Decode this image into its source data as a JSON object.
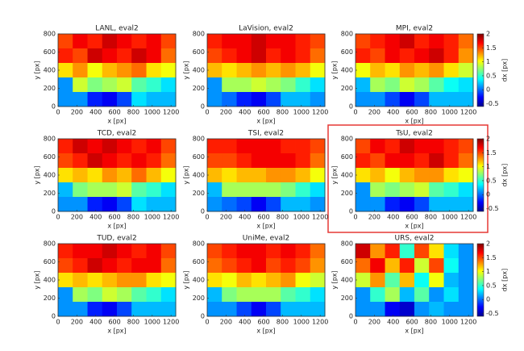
{
  "chart_data": [
    {
      "type": "heatmap",
      "title": "LANL, eval2",
      "xlabel": "x [px]",
      "ylabel": "y [px]",
      "x": [
        78,
        234,
        391,
        547,
        703,
        859,
        1016,
        1172
      ],
      "y": [
        720,
        560,
        400,
        240,
        80
      ],
      "values": [
        [
          1.5,
          1.7,
          1.6,
          1.8,
          1.7,
          1.6,
          1.7,
          1.5
        ],
        [
          1.6,
          1.5,
          1.8,
          1.7,
          1.6,
          1.8,
          1.7,
          1.4
        ],
        [
          1.1,
          1.3,
          1.0,
          1.2,
          1.3,
          1.4,
          1.1,
          1.0
        ],
        [
          0.1,
          0.9,
          0.7,
          0.8,
          0.9,
          0.6,
          0.5,
          0.3
        ],
        [
          0.1,
          0.1,
          -0.2,
          -0.3,
          -0.1,
          0.3,
          0.2,
          0.2
        ]
      ],
      "xlim": [
        0,
        1250
      ],
      "ylim": [
        0,
        800
      ],
      "xticks": [
        0,
        200,
        400,
        600,
        800,
        1000,
        1200
      ],
      "yticks": [
        0,
        200,
        400,
        600,
        800
      ],
      "clim": [
        -0.6,
        2
      ]
    },
    {
      "type": "heatmap",
      "title": "LaVision, eval2",
      "xlabel": "x [px]",
      "ylabel": "y [px]",
      "x": [
        78,
        234,
        391,
        547,
        703,
        859,
        1016,
        1172
      ],
      "y": [
        720,
        560,
        400,
        240,
        80
      ],
      "values": [
        [
          1.6,
          1.7,
          1.7,
          1.8,
          1.7,
          1.7,
          1.6,
          1.5
        ],
        [
          1.5,
          1.6,
          1.7,
          1.8,
          1.6,
          1.7,
          1.6,
          1.4
        ],
        [
          1.2,
          1.1,
          1.2,
          1.3,
          1.2,
          1.3,
          1.2,
          1.0
        ],
        [
          0.1,
          0.8,
          0.8,
          0.9,
          0.8,
          0.7,
          0.5,
          0.3
        ],
        [
          0.1,
          0.0,
          -0.2,
          -0.3,
          -0.1,
          0.2,
          0.2,
          0.1
        ]
      ],
      "xlim": [
        0,
        1250
      ],
      "ylim": [
        0,
        800
      ],
      "xticks": [
        0,
        200,
        400,
        600,
        800,
        1000,
        1200
      ],
      "yticks": [
        0,
        200,
        400,
        600,
        800
      ],
      "clim": [
        -0.6,
        2
      ]
    },
    {
      "type": "heatmap",
      "title": "MPI, eval2",
      "xlabel": "x [px]",
      "ylabel": "y [px]",
      "x": [
        78,
        234,
        391,
        547,
        703,
        859,
        1016,
        1172
      ],
      "y": [
        720,
        560,
        400,
        240,
        80
      ],
      "values": [
        [
          1.5,
          1.6,
          1.7,
          1.8,
          1.6,
          1.7,
          1.6,
          1.4
        ],
        [
          1.6,
          1.5,
          1.7,
          1.6,
          1.7,
          1.8,
          1.6,
          1.3
        ],
        [
          1.0,
          1.2,
          1.1,
          1.3,
          1.2,
          1.3,
          1.1,
          0.9
        ],
        [
          0.2,
          0.8,
          0.7,
          0.9,
          0.8,
          0.6,
          0.4,
          0.3
        ],
        [
          0.1,
          0.1,
          -0.1,
          -0.3,
          -0.1,
          0.2,
          0.2,
          0.2
        ]
      ],
      "xlim": [
        0,
        1250
      ],
      "ylim": [
        0,
        800
      ],
      "xticks": [
        0,
        200,
        400,
        600,
        800,
        1000,
        1200
      ],
      "yticks": [
        0,
        200,
        400,
        600,
        800
      ],
      "clim": [
        -0.6,
        2
      ],
      "colorbar_label": "dx [px]",
      "cticks": [
        -0.5,
        0,
        0.5,
        1,
        1.5,
        2
      ]
    },
    {
      "type": "heatmap",
      "title": "TCD, eval2",
      "xlabel": "x [px]",
      "ylabel": "y [px]",
      "x": [
        78,
        234,
        391,
        547,
        703,
        859,
        1016,
        1172
      ],
      "y": [
        720,
        560,
        400,
        240,
        80
      ],
      "values": [
        [
          1.6,
          1.8,
          1.7,
          1.8,
          1.7,
          1.6,
          1.7,
          1.5
        ],
        [
          1.5,
          1.6,
          1.8,
          1.7,
          1.6,
          1.7,
          1.6,
          1.4
        ],
        [
          1.1,
          1.2,
          1.1,
          1.3,
          1.2,
          1.4,
          1.2,
          1.0
        ],
        [
          0.2,
          0.7,
          0.8,
          0.8,
          0.9,
          0.6,
          0.5,
          0.3
        ],
        [
          0.1,
          0.1,
          -0.2,
          -0.3,
          -0.1,
          0.3,
          0.2,
          0.2
        ]
      ],
      "xlim": [
        0,
        1250
      ],
      "ylim": [
        0,
        800
      ],
      "xticks": [
        0,
        200,
        400,
        600,
        800,
        1000,
        1200
      ],
      "yticks": [
        0,
        200,
        400,
        600,
        800
      ],
      "clim": [
        -0.6,
        2
      ]
    },
    {
      "type": "heatmap",
      "title": "TSI, eval2",
      "xlabel": "x [px]",
      "ylabel": "y [px]",
      "x": [
        78,
        234,
        391,
        547,
        703,
        859,
        1016,
        1172
      ],
      "y": [
        720,
        560,
        400,
        240,
        80
      ],
      "values": [
        [
          1.6,
          1.6,
          1.7,
          1.7,
          1.7,
          1.6,
          1.6,
          1.5
        ],
        [
          1.5,
          1.5,
          1.6,
          1.7,
          1.7,
          1.7,
          1.6,
          1.4
        ],
        [
          1.2,
          1.1,
          1.2,
          1.2,
          1.3,
          1.3,
          1.2,
          1.0
        ],
        [
          0.2,
          0.8,
          0.8,
          0.8,
          0.8,
          0.7,
          0.5,
          0.3
        ],
        [
          0.1,
          0.0,
          -0.1,
          -0.3,
          -0.1,
          0.2,
          0.2,
          0.1
        ]
      ],
      "xlim": [
        0,
        1250
      ],
      "ylim": [
        0,
        800
      ],
      "xticks": [
        0,
        200,
        400,
        600,
        800,
        1000,
        1200
      ],
      "yticks": [
        0,
        200,
        400,
        600,
        800
      ],
      "clim": [
        -0.6,
        2
      ]
    },
    {
      "type": "heatmap",
      "title": "TsU, eval2",
      "xlabel": "x [px]",
      "ylabel": "y [px]",
      "x": [
        78,
        234,
        391,
        547,
        703,
        859,
        1016,
        1172
      ],
      "y": [
        720,
        560,
        400,
        240,
        80
      ],
      "values": [
        [
          1.5,
          1.7,
          1.6,
          1.8,
          1.7,
          1.7,
          1.6,
          1.5
        ],
        [
          1.6,
          1.5,
          1.7,
          1.7,
          1.6,
          1.8,
          1.6,
          1.4
        ],
        [
          1.1,
          1.2,
          1.0,
          1.2,
          1.3,
          1.3,
          1.1,
          1.0
        ],
        [
          0.1,
          0.8,
          0.7,
          0.8,
          0.9,
          0.6,
          0.5,
          0.3
        ],
        [
          0.1,
          0.1,
          -0.2,
          -0.3,
          -0.1,
          0.2,
          0.2,
          0.2
        ]
      ],
      "xlim": [
        0,
        1250
      ],
      "ylim": [
        0,
        800
      ],
      "xticks": [
        0,
        200,
        400,
        600,
        800,
        1000,
        1200
      ],
      "yticks": [
        0,
        200,
        400,
        600,
        800
      ],
      "clim": [
        -0.6,
        2
      ],
      "colorbar_label": "dx [px]",
      "cticks": [
        -0.5,
        0,
        0.5,
        1,
        1.5,
        2
      ]
    },
    {
      "type": "heatmap",
      "title": "TUD, eval2",
      "xlabel": "x [px]",
      "ylabel": "y [px]",
      "x": [
        78,
        234,
        391,
        547,
        703,
        859,
        1016,
        1172
      ],
      "y": [
        720,
        560,
        400,
        240,
        80
      ],
      "values": [
        [
          1.6,
          1.7,
          1.7,
          1.8,
          1.7,
          1.6,
          1.7,
          1.5
        ],
        [
          1.5,
          1.6,
          1.8,
          1.7,
          1.6,
          1.7,
          1.7,
          1.4
        ],
        [
          1.1,
          1.2,
          1.1,
          1.2,
          1.3,
          1.3,
          1.1,
          1.0
        ],
        [
          0.1,
          0.8,
          0.7,
          0.9,
          0.8,
          0.6,
          0.5,
          0.3
        ],
        [
          0.1,
          0.1,
          -0.2,
          -0.3,
          -0.1,
          0.2,
          0.2,
          0.2
        ]
      ],
      "xlim": [
        0,
        1250
      ],
      "ylim": [
        0,
        800
      ],
      "xticks": [
        0,
        200,
        400,
        600,
        800,
        1000,
        1200
      ],
      "yticks": [
        0,
        200,
        400,
        600,
        800
      ],
      "clim": [
        -0.6,
        2
      ]
    },
    {
      "type": "heatmap",
      "title": "UniMe, eval2",
      "xlabel": "x [px]",
      "ylabel": "y [px]",
      "x": [
        78,
        234,
        391,
        547,
        703,
        859,
        1016,
        1172
      ],
      "y": [
        720,
        560,
        400,
        240,
        80
      ],
      "values": [
        [
          1.5,
          1.6,
          1.7,
          1.7,
          1.6,
          1.7,
          1.6,
          1.4
        ],
        [
          1.4,
          1.5,
          1.6,
          1.7,
          1.5,
          1.6,
          1.5,
          1.3
        ],
        [
          1.1,
          1.0,
          1.2,
          1.1,
          1.2,
          1.3,
          1.0,
          0.9
        ],
        [
          0.2,
          0.7,
          0.8,
          0.8,
          0.8,
          0.6,
          0.5,
          0.3
        ],
        [
          0.1,
          0.1,
          -0.1,
          -0.3,
          -0.1,
          0.2,
          0.2,
          0.2
        ]
      ],
      "xlim": [
        0,
        1250
      ],
      "ylim": [
        0,
        800
      ],
      "xticks": [
        0,
        200,
        400,
        600,
        800,
        1000,
        1200
      ],
      "yticks": [
        0,
        200,
        400,
        600,
        800
      ],
      "clim": [
        -0.6,
        2
      ]
    },
    {
      "type": "heatmap",
      "title": "URS, eval2",
      "xlabel": "x [px]",
      "ylabel": "y [px]",
      "x": [
        78,
        234,
        391,
        547,
        703,
        859,
        1016,
        1172
      ],
      "y": [
        720,
        560,
        400,
        240,
        80
      ],
      "values": [
        [
          1.8,
          1.3,
          1.6,
          0.5,
          1.5,
          1.1,
          0.3,
          0.1
        ],
        [
          1.4,
          1.7,
          1.2,
          1.6,
          0.9,
          1.5,
          0.4,
          0.1
        ],
        [
          0.9,
          1.3,
          0.6,
          1.2,
          0.4,
          1.0,
          0.2,
          0.1
        ],
        [
          0.1,
          0.5,
          0.8,
          0.2,
          0.6,
          0.1,
          0.3,
          0.1
        ],
        [
          0.1,
          0.1,
          -0.3,
          -0.4,
          0.1,
          0.2,
          0.1,
          0.1
        ]
      ],
      "xlim": [
        0,
        1250
      ],
      "ylim": [
        0,
        800
      ],
      "xticks": [
        0,
        200,
        400,
        600,
        800,
        1000,
        1200
      ],
      "yticks": [
        0,
        200,
        400,
        600,
        800
      ],
      "clim": [
        -0.6,
        2
      ],
      "colorbar_label": "dx [px]",
      "cticks": [
        -0.5,
        0,
        0.5,
        1,
        1.5,
        2
      ]
    }
  ]
}
